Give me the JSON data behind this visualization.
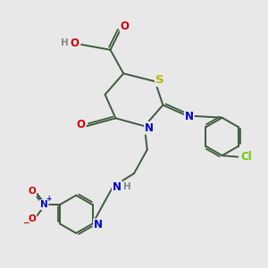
{
  "bg_color": "#e8e8e8",
  "bond_color": "#3d5a3d",
  "bond_width": 1.4,
  "atom_colors": {
    "S": "#b8b800",
    "N": "#0000cc",
    "O": "#cc0000",
    "Cl": "#66cc00",
    "H": "#888888",
    "C": "#3d5a3d"
  },
  "font_size": 8.5
}
